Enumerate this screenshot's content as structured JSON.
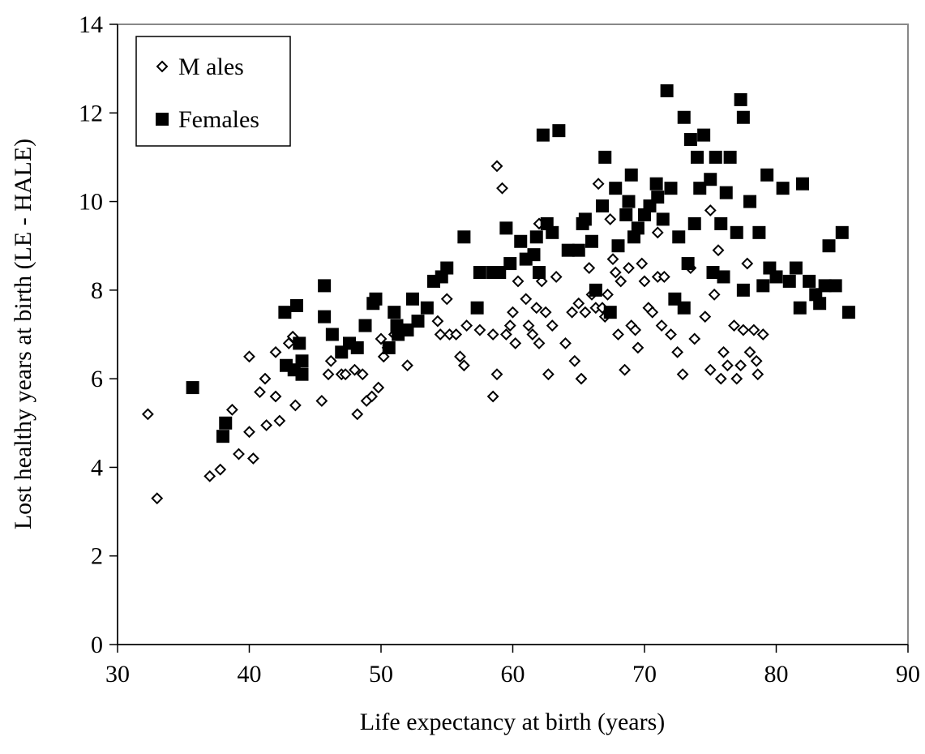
{
  "chart_data": {
    "type": "scatter",
    "xlabel": "Life expectancy at birth (years)",
    "ylabel": "Lost healthy years at birth (LE - HALE)",
    "xlim": [
      30,
      90
    ],
    "xticks": [
      30,
      40,
      50,
      60,
      70,
      80,
      90
    ],
    "ylim": [
      0,
      14
    ],
    "yticks": [
      0,
      2,
      4,
      6,
      8,
      10,
      12,
      14
    ],
    "legend": "upper left",
    "series": [
      {
        "name": "M ales",
        "color": "#000000",
        "marker": "diamond-open",
        "x": [
          32.3,
          33,
          37,
          37.8,
          38.7,
          39.2,
          40,
          40,
          40.3,
          40.8,
          41.2,
          41.3,
          42,
          42,
          42.3,
          43,
          43.3,
          43.5,
          45.5,
          46,
          46.2,
          47,
          47.3,
          48,
          48.2,
          48.6,
          48.9,
          49.3,
          49.8,
          50,
          50.2,
          50.5,
          51,
          52,
          54.3,
          54.5,
          55,
          55.2,
          55.7,
          56,
          56.3,
          56.5,
          57.5,
          58.5,
          58.5,
          58.8,
          58.8,
          59.2,
          59.5,
          59.8,
          60,
          60.2,
          60.4,
          61,
          61.2,
          61.5,
          61.8,
          62,
          62,
          62.2,
          62.5,
          62.7,
          63,
          63.3,
          64,
          64.5,
          64.7,
          65,
          65.2,
          65.5,
          65.8,
          66,
          66.3,
          66.5,
          66.8,
          67,
          67.2,
          67.4,
          67.6,
          67.8,
          68,
          68.2,
          68.5,
          68.8,
          69,
          69.3,
          69.5,
          69.8,
          70,
          70.3,
          70.6,
          71,
          71,
          71.3,
          71.5,
          72,
          72.5,
          72.9,
          73.5,
          73.8,
          74.6,
          75,
          75,
          75.3,
          75.6,
          75.8,
          76,
          76.3,
          76.8,
          77,
          77.3,
          77.5,
          77.8,
          78,
          78.3,
          78.5,
          78.6,
          79
        ],
        "values": [
          5.2,
          3.3,
          3.8,
          3.95,
          5.3,
          4.3,
          4.8,
          6.5,
          4.2,
          5.7,
          6,
          4.95,
          6.6,
          5.6,
          5.05,
          6.8,
          6.95,
          5.4,
          5.5,
          6.1,
          6.4,
          6.1,
          6.1,
          6.2,
          5.2,
          6.1,
          5.5,
          5.6,
          5.8,
          6.9,
          6.5,
          6.7,
          7,
          6.3,
          7.3,
          7,
          7.8,
          7,
          7,
          6.5,
          6.3,
          7.2,
          7.1,
          7,
          5.6,
          6.1,
          10.8,
          10.3,
          7,
          7.2,
          7.5,
          6.8,
          8.2,
          7.8,
          7.2,
          7,
          7.6,
          6.8,
          9.5,
          8.2,
          7.5,
          6.1,
          7.2,
          8.3,
          6.8,
          7.5,
          6.4,
          7.7,
          6,
          7.5,
          8.5,
          7.9,
          7.6,
          10.4,
          7.6,
          7.4,
          7.9,
          9.6,
          8.7,
          8.4,
          7,
          8.2,
          6.2,
          8.5,
          7.2,
          7.1,
          6.7,
          8.6,
          8.2,
          7.6,
          7.5,
          8.3,
          9.3,
          7.2,
          8.3,
          7,
          6.6,
          6.1,
          8.5,
          6.9,
          7.4,
          6.2,
          9.8,
          7.9,
          8.9,
          6,
          6.6,
          6.3,
          7.2,
          6,
          6.3,
          7.1,
          8.6,
          6.6,
          7.1,
          6.4,
          6.1,
          7
        ]
      },
      {
        "name": "Females",
        "color": "#000000",
        "marker": "square",
        "x": [
          35.7,
          38,
          38.2,
          42.7,
          42.8,
          43.4,
          43.6,
          43.8,
          44,
          44,
          45.7,
          45.7,
          46.3,
          47,
          47.6,
          48.2,
          48.8,
          49.4,
          49.6,
          50.6,
          51,
          51.2,
          51.3,
          52,
          52.4,
          52.8,
          53.5,
          54,
          54.6,
          55,
          56.3,
          57.3,
          57.5,
          58.5,
          59,
          59.5,
          59.8,
          60.6,
          61,
          61.6,
          61.8,
          62,
          62.3,
          62.6,
          63,
          63.5,
          64.2,
          65,
          65.3,
          65.5,
          66,
          66.3,
          66.8,
          67,
          67.4,
          67.8,
          68,
          68.6,
          68.8,
          69,
          69.2,
          69.5,
          70,
          70.4,
          70.9,
          71.4,
          71.7,
          72,
          72.3,
          72.6,
          73,
          73,
          73.3,
          73.5,
          74,
          74.5,
          75,
          75.4,
          75.8,
          76.5,
          77,
          77.3,
          77.5,
          77.5,
          78,
          78.7,
          79,
          79.3,
          79.5,
          80,
          80.5,
          81,
          81.5,
          81.8,
          82,
          82.5,
          83,
          83.3,
          83.7,
          84,
          84.5,
          85,
          85.5,
          74.2,
          75.2,
          76,
          76.2,
          71,
          73.8
        ],
        "values": [
          5.8,
          4.7,
          5,
          7.5,
          6.3,
          6.2,
          7.65,
          6.8,
          6.4,
          6.1,
          8.1,
          7.4,
          7,
          6.6,
          6.8,
          6.7,
          7.2,
          7.7,
          7.8,
          6.7,
          7.5,
          7.2,
          7,
          7.1,
          7.8,
          7.3,
          7.6,
          8.2,
          8.3,
          8.5,
          9.2,
          7.6,
          8.4,
          8.4,
          8.4,
          9.4,
          8.6,
          9.1,
          8.7,
          8.8,
          9.2,
          8.4,
          11.5,
          9.5,
          9.3,
          11.6,
          8.9,
          8.9,
          9.5,
          9.6,
          9.1,
          8,
          9.9,
          11,
          7.5,
          10.3,
          9,
          9.7,
          10,
          10.6,
          9.2,
          9.4,
          9.7,
          9.9,
          10.4,
          9.6,
          12.5,
          10.3,
          7.8,
          9.2,
          11.9,
          7.6,
          8.6,
          11.4,
          11,
          11.5,
          10.5,
          11,
          9.5,
          11,
          9.3,
          12.3,
          11.9,
          8,
          10,
          9.3,
          8.1,
          10.6,
          8.5,
          8.3,
          10.3,
          8.2,
          8.5,
          7.6,
          10.4,
          8.2,
          7.9,
          7.7,
          8.1,
          9,
          8.1,
          9.3,
          7.5,
          10.3,
          8.4,
          8.3,
          10.2,
          10.1,
          9.5
        ]
      }
    ]
  }
}
